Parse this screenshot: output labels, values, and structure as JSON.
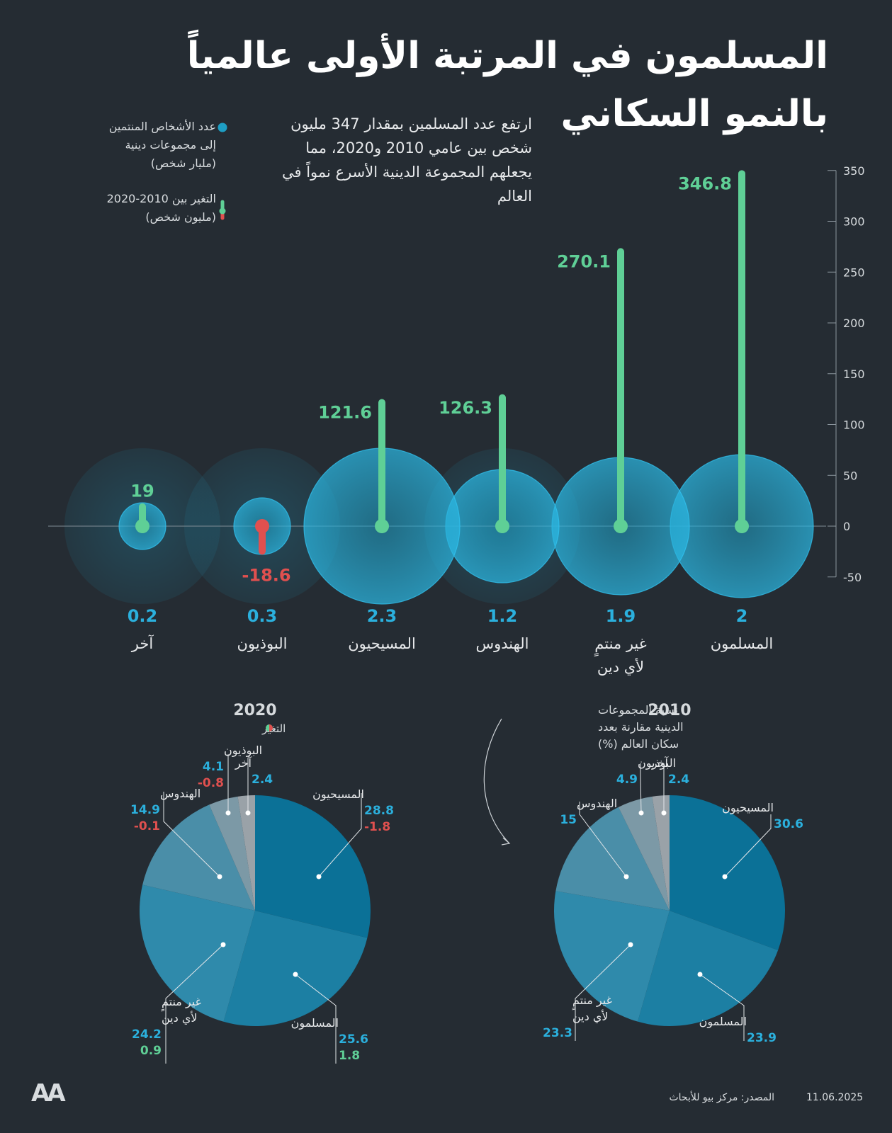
{
  "title_line1": "المسلمون في المرتبة الأولى عالمياً",
  "title_line2": "بالنمو السكاني",
  "subtitle": "ارتفع عدد المسلمين بمقدار 347 مليون شخص بين عامي 2010 و2020، مما يجعلهم المجموعة الدينية الأسرع نمواً في العالم",
  "legend": {
    "circle_label": [
      "عدد الأشخاص المنتمين",
      "إلى مجموعات دينية",
      "(مليار شخص)"
    ],
    "change_label": [
      "التغير بين 2010-2020",
      "(مليون شخص)"
    ]
  },
  "colors": {
    "background": "#252c33",
    "positive": "#5fcf96",
    "negative": "#e0504f",
    "circle": "#1e9ec4",
    "population": "#2bb0dd"
  },
  "footer": {
    "logo": "AA",
    "source": "المصدر: مركز بيو للأبحاث",
    "date": "11.06.2025"
  },
  "chart_data": [
    {
      "type": "bar",
      "ylim": [
        -50,
        350
      ],
      "yticks": [
        350,
        300,
        250,
        200,
        150,
        100,
        50,
        0,
        -50
      ],
      "categories": [
        {
          "name": [
            "المسلمون"
          ],
          "population": "2",
          "change": 346.8,
          "change_label": "346.8"
        },
        {
          "name": [
            "غير منتمٍ",
            "لأي دين"
          ],
          "population": "1.9",
          "change": 270.1,
          "change_label": "270.1"
        },
        {
          "name": [
            "الهندوس"
          ],
          "population": "1.2",
          "change": 126.3,
          "change_label": "126.3"
        },
        {
          "name": [
            "المسيحيون"
          ],
          "population": "2.3",
          "change": 121.6,
          "change_label": "121.6"
        },
        {
          "name": [
            "البوذيون"
          ],
          "population": "0.3",
          "change": -18.6,
          "change_label": "-18.6"
        },
        {
          "name": [
            "آخر"
          ],
          "population": "0.2",
          "change": 19,
          "change_label": "19"
        }
      ]
    },
    {
      "type": "pie",
      "title": "2010",
      "note": [
        "نسبة المجموعات",
        "الدينية مقارنة بعدد",
        "سكان العالم (%)"
      ],
      "slices": [
        {
          "name": [
            "المسيحيون"
          ],
          "value": "30.6"
        },
        {
          "name": [
            "المسلمون"
          ],
          "value": "23.9"
        },
        {
          "name": [
            "غير منتمٍ",
            "لأي دين"
          ],
          "value": "23.3"
        },
        {
          "name": [
            "الهندوس"
          ],
          "value": "15"
        },
        {
          "name": [
            "البوذيون"
          ],
          "value": "4.9"
        },
        {
          "name": [
            "آخر"
          ],
          "value": "2.4"
        }
      ]
    },
    {
      "type": "pie",
      "title": "2020",
      "change_legend": "التغير",
      "slices": [
        {
          "name": [
            "المسيحيون"
          ],
          "value": "28.8",
          "change": "-1.8"
        },
        {
          "name": [
            "المسلمون"
          ],
          "value": "25.6",
          "change": "1.8"
        },
        {
          "name": [
            "غير منتمٍ",
            "لأي دين"
          ],
          "value": "24.2",
          "change": "0.9"
        },
        {
          "name": [
            "الهندوس"
          ],
          "value": "14.9",
          "change": "-0.1"
        },
        {
          "name": [
            "البوذيون"
          ],
          "value": "4.1",
          "change": "-0.8"
        },
        {
          "name": [
            "آخر"
          ],
          "value": "2.4"
        }
      ]
    }
  ]
}
